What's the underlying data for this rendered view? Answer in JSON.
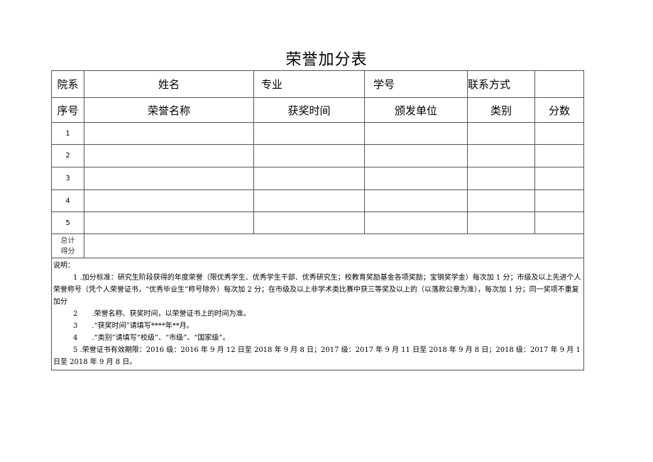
{
  "title": "荣誉加分表",
  "header_row": {
    "dept": "院系",
    "name": "姓名",
    "major": "专业",
    "student_id": "学号",
    "contact": "联系方式"
  },
  "columns": [
    "序号",
    "荣誉名称",
    "获奖时间",
    "颁发单位",
    "类别",
    "分数"
  ],
  "rows": [
    "1",
    "2",
    "3",
    "4",
    "5"
  ],
  "total_label": [
    "总计",
    "得分"
  ],
  "notes": {
    "heading": "说明：",
    "items": [
      "1 .加分标准：研究生阶段获得的年度荣誉（限优秀学生、优秀学生干部、优秀研究生；校教育奖励基金各项奖励；宝钢奖学金）每次加 1 分；市级及以上先进个人荣誉称号（凭个人荣誉证书，“优秀毕业生”称号除外）每次加 2 分；在市级及以上非学术类比赛中获三等奖及以上的（以落款公章为准），每次加 1 分；同一奖项不重复加分",
      "2　　.荣誉名称、获奖时间，以荣誉证书上的时间为准。",
      "3　　.“获奖时间”请填写****年**月。",
      "4　　.“类别”请填写“校级”、“市级”、“国家级”。",
      "5 .荣誉证书有效期限：2016 级：2016 年 9 月 12 日至 2018 年 9 月 8 日；2017 级：2017 年 9 月 11 日至 2018 年 9 月 8 日；2018 级：2017 年 9 月 1 日至 2018 年 9 月 8 日。"
    ]
  }
}
